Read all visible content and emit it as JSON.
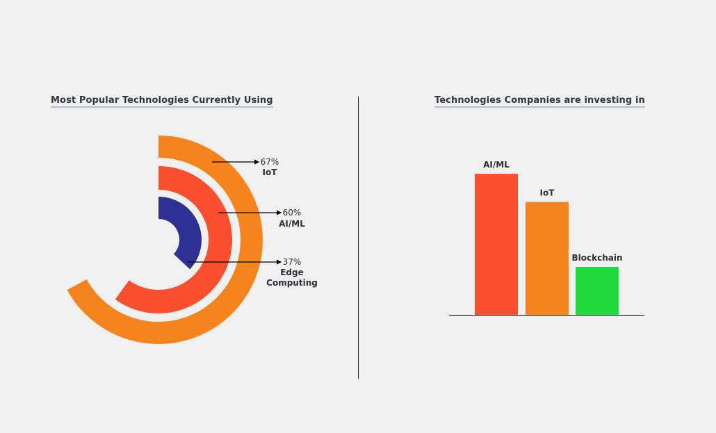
{
  "chart_data": [
    {
      "type": "radial-bar",
      "title": "Most Popular Technologies Currently Using",
      "series": [
        {
          "name": "IoT",
          "value": 67,
          "label": "67%",
          "color": "#f5841f"
        },
        {
          "name": "AI/ML",
          "value": 60,
          "label": "60%",
          "color": "#fb4f2e"
        },
        {
          "name": "Edge Computing",
          "value": 37,
          "label": "37%",
          "name_lines": [
            "Edge",
            "Computing"
          ],
          "color": "#2e3192"
        }
      ],
      "max": 100
    },
    {
      "type": "bar",
      "title": "Technologies Companies are investing in",
      "categories": [
        "AI/ML",
        "IoT",
        "Blockchain"
      ],
      "values": [
        100,
        80,
        34
      ],
      "colors": [
        "#fb4f2e",
        "#f5841f",
        "#21d93a"
      ],
      "ylim": [
        0,
        100
      ],
      "xlabel": "",
      "ylabel": ""
    }
  ]
}
